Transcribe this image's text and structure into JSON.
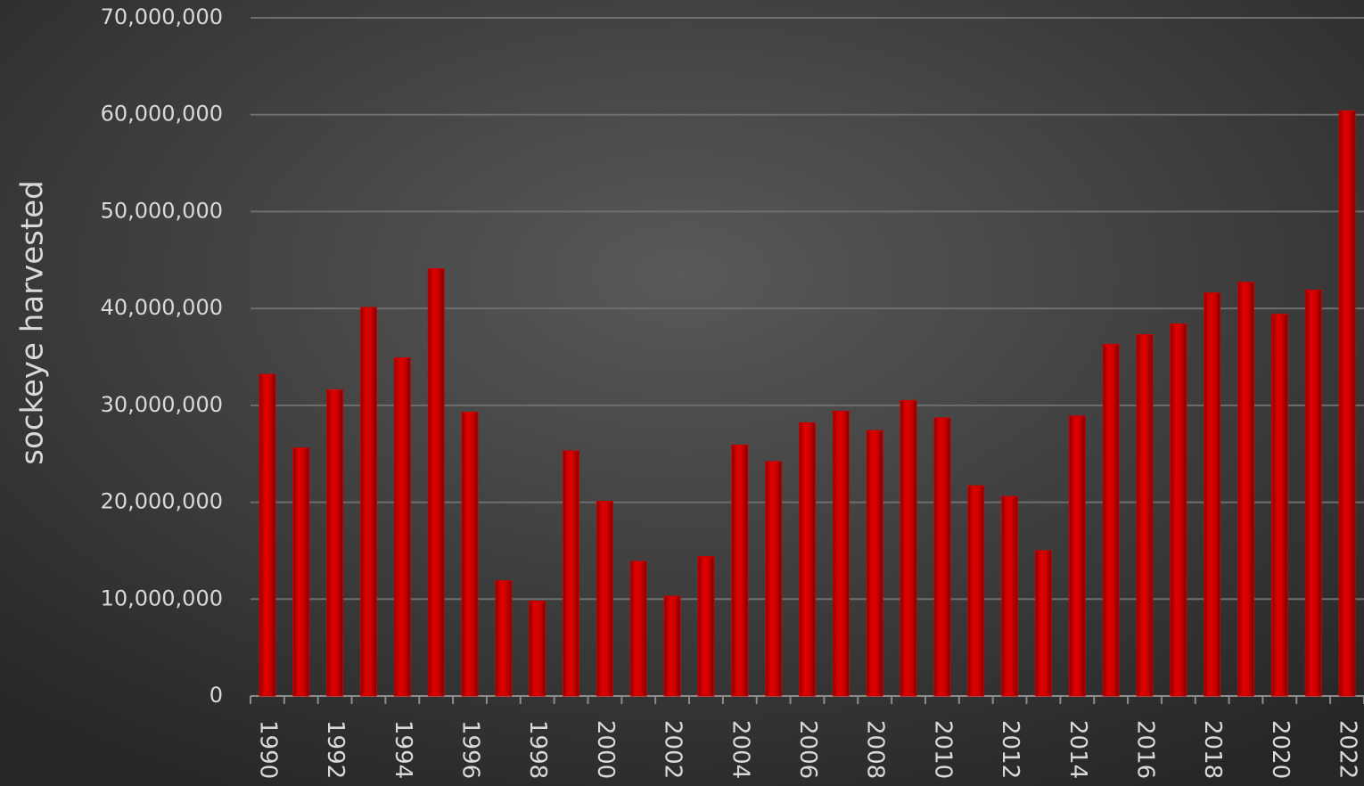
{
  "chart_data": {
    "type": "bar",
    "y_label": "sockeye harvested",
    "categories": [
      "1990",
      null,
      "1992",
      null,
      "1994",
      null,
      "1996",
      null,
      "1998",
      null,
      "2000",
      null,
      "2002",
      null,
      "2004",
      null,
      "2006",
      null,
      "2008",
      null,
      "2010",
      null,
      "2012",
      null,
      "2014",
      null,
      "2016",
      null,
      "2018",
      null,
      "2020",
      null,
      "2022"
    ],
    "values": [
      33200000,
      25600000,
      31600000,
      40100000,
      34900000,
      44100000,
      29300000,
      11900000,
      9800000,
      25300000,
      20100000,
      13900000,
      10300000,
      14400000,
      25900000,
      24200000,
      28200000,
      29400000,
      27400000,
      30500000,
      28700000,
      21700000,
      20600000,
      15000000,
      28900000,
      36300000,
      37300000,
      38400000,
      41600000,
      42700000,
      39400000,
      41900000,
      60400000
    ],
    "color": "#cc0000",
    "ylim": [
      0,
      70000000
    ],
    "yticks": [
      0,
      {
        "value": 10000000,
        "label": "10,000,000"
      },
      {
        "value": 20000000,
        "label": "20,000,000"
      },
      {
        "value": 30000000,
        "label": "30,000,000"
      },
      {
        "value": 40000000,
        "label": "40,000,000"
      },
      {
        "value": 50000000,
        "label": "50,000,000"
      },
      {
        "value": 60000000,
        "label": "60,000,000"
      },
      {
        "value": 70000000,
        "label": "70,000,000"
      }
    ],
    "grid": true
  }
}
